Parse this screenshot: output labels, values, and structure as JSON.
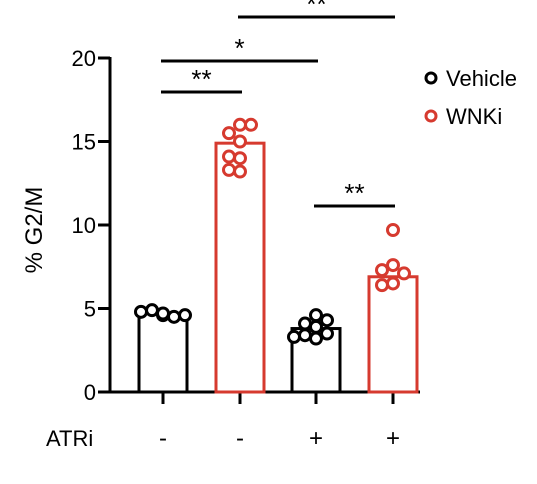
{
  "chart_data": {
    "type": "bar",
    "ylabel": "% G2/M",
    "ylim": [
      0,
      20
    ],
    "yticks": [
      0,
      5,
      10,
      15,
      20
    ],
    "row_label": "ATRi",
    "groups": [
      {
        "atri": "-",
        "treatment": "Vehicle",
        "mean": 4.7,
        "points": [
          4.6,
          4.9,
          4.5,
          4.8,
          4.6,
          4.7
        ]
      },
      {
        "atri": "-",
        "treatment": "WNKi",
        "mean": 14.9,
        "points": [
          16.0,
          15.5,
          16.0,
          15.0,
          14.0,
          13.2,
          14.1,
          13.3
        ]
      },
      {
        "atri": "+",
        "treatment": "Vehicle",
        "mean": 3.8,
        "points": [
          4.6,
          4.1,
          3.9,
          3.5,
          3.2,
          3.4,
          3.3,
          4.3
        ]
      },
      {
        "atri": "+",
        "treatment": "WNKi",
        "mean": 6.9,
        "points": [
          9.7,
          7.6,
          7.3,
          7.1,
          6.5,
          6.4
        ]
      }
    ],
    "legend": [
      {
        "name": "Vehicle",
        "color": "#000000"
      },
      {
        "name": "WNKi",
        "color": "#d63a2f"
      }
    ],
    "legend_position": "top-right",
    "significance": [
      {
        "from": 0,
        "to": 1,
        "label": "**"
      },
      {
        "from": 0,
        "to": 2,
        "label": "*"
      },
      {
        "from": 1,
        "to": 3,
        "label": "**"
      },
      {
        "from": 2,
        "to": 3,
        "label": "**"
      }
    ]
  }
}
